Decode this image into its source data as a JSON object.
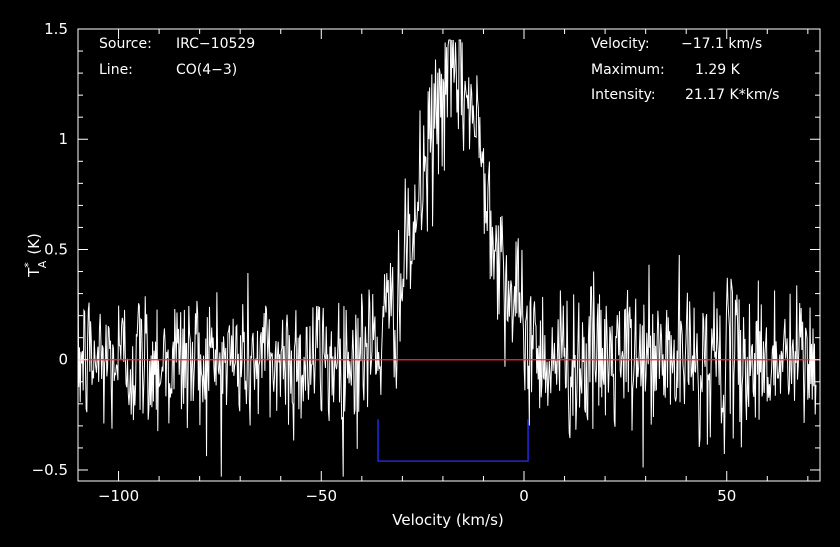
{
  "chart_data": {
    "type": "line",
    "title": "",
    "xlabel": "Velocity (km/s)",
    "ylabel_main": "T",
    "ylabel_sup": "*",
    "ylabel_sub": "A",
    "ylabel_unit": "(K)",
    "xlim": [
      -110,
      73
    ],
    "ylim": [
      -0.55,
      1.5
    ],
    "xticks": [
      -100,
      -50,
      0,
      50
    ],
    "xtick_labels": [
      "−100",
      "−50",
      "0",
      "50"
    ],
    "yticks": [
      -0.5,
      0,
      0.5,
      1,
      1.5
    ],
    "ytick_labels": [
      "−0.5",
      "0",
      "0.5",
      "1",
      "1.5"
    ],
    "grid": false,
    "baseline": {
      "y": 0,
      "color": "#ff2a2a"
    },
    "window": {
      "x_start": -36,
      "x_end": 1,
      "y_bottom": -0.46,
      "y_top": -0.27,
      "color": "#2230ff"
    },
    "spectrum": {
      "color": "#ffffff",
      "x_start": -110,
      "x_end": 72,
      "channels": 1000,
      "noise_rms": 0.17,
      "line_center": -17.1,
      "line_peak": 1.29,
      "line_fwhm": 19
    },
    "annotations_left": [
      {
        "label": "Source:",
        "value": "IRC−10529"
      },
      {
        "label": "Line:",
        "value": "CO(4−3)"
      }
    ],
    "annotations_right": [
      {
        "label": "Velocity:",
        "value": "−17.1 km/s"
      },
      {
        "label": "Maximum:",
        "value": "1.29 K"
      },
      {
        "label": "Intensity:",
        "value": "21.17 K*km/s"
      }
    ]
  }
}
